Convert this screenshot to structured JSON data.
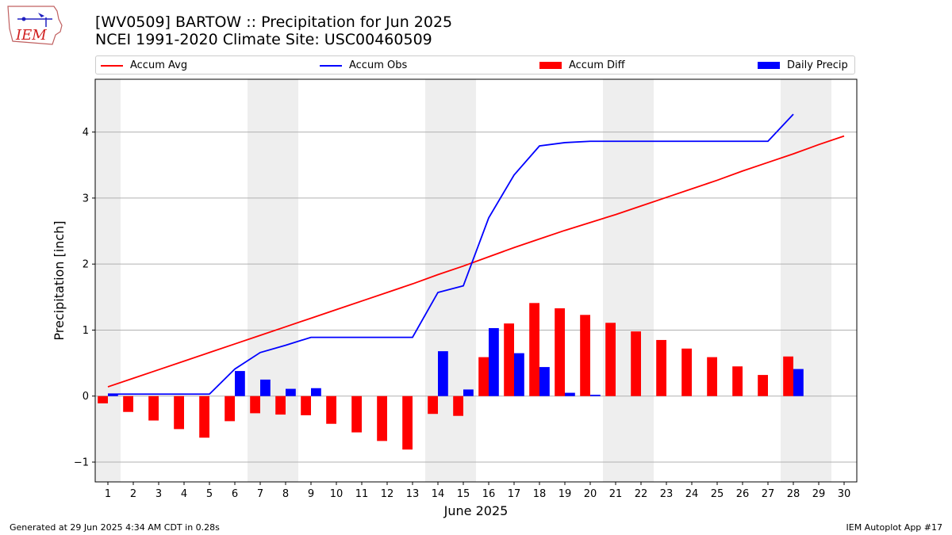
{
  "header": {
    "title_line1": "[WV0509] BARTOW :: Precipitation for Jun 2025",
    "title_line2": "NCEI 1991-2020 Climate Site: USC00460509",
    "logo_text": "IEM"
  },
  "footer": {
    "generated": "Generated at 29 Jun 2025 4:34 AM CDT in 0.28s",
    "app": "IEM Autoplot App #17"
  },
  "colors": {
    "accum_avg": "#ff0000",
    "accum_obs": "#0000ff",
    "accum_diff": "#ff0000",
    "daily_precip": "#0000ff",
    "weekend_shade": "#eeeeee",
    "grid": "#b0b0b0"
  },
  "chart_data": {
    "type": "bar",
    "xlabel": "June 2025",
    "ylabel": "Precipitation [inch]",
    "xlim": [
      0.5,
      30.5
    ],
    "ylim": [
      -1.3,
      4.8
    ],
    "yticks": [
      -1,
      0,
      1,
      2,
      3,
      4
    ],
    "ytick_labels": [
      "−1",
      "0",
      "1",
      "2",
      "3",
      "4"
    ],
    "grid": "horizontal",
    "legend_position": "top",
    "days": [
      1,
      2,
      3,
      4,
      5,
      6,
      7,
      8,
      9,
      10,
      11,
      12,
      13,
      14,
      15,
      16,
      17,
      18,
      19,
      20,
      21,
      22,
      23,
      24,
      25,
      26,
      27,
      28,
      29,
      30
    ],
    "weekend_ranges": [
      [
        0.5,
        1.5
      ],
      [
        6.5,
        8.5
      ],
      [
        13.5,
        15.5
      ],
      [
        20.5,
        22.5
      ],
      [
        27.5,
        29.5
      ]
    ],
    "series": [
      {
        "name": "Accum Avg",
        "kind": "line",
        "days": [
          1,
          2,
          3,
          4,
          5,
          6,
          7,
          8,
          9,
          10,
          11,
          12,
          13,
          14,
          15,
          16,
          17,
          18,
          19,
          20,
          21,
          22,
          23,
          24,
          25,
          26,
          27,
          28,
          29,
          30
        ],
        "values": [
          0.14,
          0.27,
          0.4,
          0.53,
          0.66,
          0.79,
          0.92,
          1.05,
          1.18,
          1.31,
          1.44,
          1.57,
          1.7,
          1.84,
          1.97,
          2.11,
          2.25,
          2.38,
          2.51,
          2.63,
          2.75,
          2.88,
          3.01,
          3.14,
          3.27,
          3.41,
          3.54,
          3.67,
          3.81,
          3.94
        ]
      },
      {
        "name": "Accum Obs",
        "kind": "line",
        "days": [
          1,
          2,
          3,
          4,
          5,
          6,
          7,
          8,
          9,
          10,
          11,
          12,
          13,
          14,
          15,
          16,
          17,
          18,
          19,
          20,
          21,
          22,
          23,
          24,
          25,
          26,
          27,
          28
        ],
        "values": [
          0.03,
          0.03,
          0.03,
          0.03,
          0.03,
          0.41,
          0.66,
          0.77,
          0.89,
          0.89,
          0.89,
          0.89,
          0.89,
          1.57,
          1.67,
          2.7,
          3.35,
          3.79,
          3.84,
          3.86,
          3.86,
          3.86,
          3.86,
          3.86,
          3.86,
          3.86,
          3.86,
          4.27
        ]
      },
      {
        "name": "Accum Diff",
        "kind": "bar",
        "days": [
          1,
          2,
          3,
          4,
          5,
          6,
          7,
          8,
          9,
          10,
          11,
          12,
          13,
          14,
          15,
          16,
          17,
          18,
          19,
          20,
          21,
          22,
          23,
          24,
          25,
          26,
          27,
          28
        ],
        "values": [
          -0.11,
          -0.24,
          -0.37,
          -0.5,
          -0.63,
          -0.38,
          -0.26,
          -0.28,
          -0.29,
          -0.42,
          -0.55,
          -0.68,
          -0.81,
          -0.27,
          -0.3,
          0.59,
          1.1,
          1.41,
          1.33,
          1.23,
          1.11,
          0.98,
          0.85,
          0.72,
          0.59,
          0.45,
          0.32,
          0.6
        ]
      },
      {
        "name": "Daily Precip",
        "kind": "bar",
        "days": [
          1,
          2,
          3,
          4,
          5,
          6,
          7,
          8,
          9,
          10,
          11,
          12,
          13,
          14,
          15,
          16,
          17,
          18,
          19,
          20,
          21,
          22,
          23,
          24,
          25,
          26,
          27,
          28
        ],
        "values": [
          0.03,
          0,
          0,
          0,
          0,
          0.38,
          0.25,
          0.11,
          0.12,
          0,
          0,
          0,
          0,
          0.68,
          0.1,
          1.03,
          0.65,
          0.44,
          0.05,
          0.02,
          0,
          0,
          0,
          0,
          0,
          0,
          0,
          0.41
        ]
      }
    ]
  }
}
